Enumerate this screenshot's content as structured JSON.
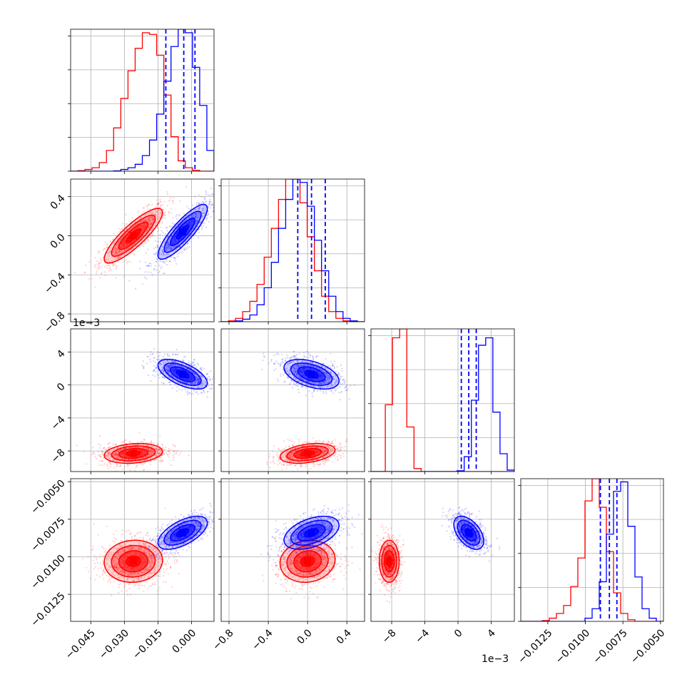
{
  "figure": {
    "type": "corner plot"
  },
  "chart_data": {
    "type": "corner",
    "parameters": 4,
    "colors": {
      "red": "#ff0000",
      "blue": "#0000ff"
    },
    "series": [
      {
        "color": "red",
        "means": [
          -0.026,
          0.0,
          -0.0083,
          -0.0103
        ],
        "sds": [
          0.0065,
          0.14,
          0.0006,
          0.0007
        ],
        "corr": [
          [
            1,
            0.85,
            0.2,
            0.05
          ],
          [
            0.85,
            1,
            0.35,
            0.1
          ],
          [
            0.2,
            0.35,
            1,
            0.0
          ],
          [
            0.05,
            0.1,
            0.0,
            1
          ]
        ]
      },
      {
        "color": "blue",
        "means": [
          -0.004,
          0.04,
          0.0013,
          -0.0084
        ],
        "sds": [
          0.0055,
          0.14,
          0.0009,
          0.00055
        ],
        "corr": [
          [
            1,
            0.85,
            -0.6,
            0.6
          ],
          [
            0.85,
            1,
            -0.45,
            0.45
          ],
          [
            -0.6,
            -0.45,
            1,
            -0.5
          ],
          [
            0.6,
            0.45,
            -0.5,
            1
          ]
        ]
      }
    ],
    "ranges": [
      [
        -0.054,
        0.01
      ],
      [
        -0.88,
        0.58
      ],
      [
        -0.0105,
        0.0068
      ],
      [
        -0.0143,
        -0.0048
      ]
    ],
    "quantile_lines_blue": [
      [
        -0.0115,
        -0.0035,
        0.0015
      ],
      [
        -0.1,
        0.04,
        0.18
      ],
      [
        0.0004,
        0.0013,
        0.0022
      ],
      [
        -0.009,
        -0.0084,
        -0.0079
      ]
    ],
    "histograms": [
      {
        "bins": 20,
        "red": [
          0,
          0.3,
          1,
          2,
          5,
          12,
          25,
          42,
          58,
          71,
          80,
          79,
          67,
          44,
          20,
          6,
          2,
          0.5,
          0,
          0
        ],
        "blue": [
          0,
          0,
          0,
          0,
          0,
          0,
          0.2,
          1,
          2,
          4,
          9,
          18,
          33,
          52,
          72,
          82,
          80,
          60,
          38,
          12
        ]
      },
      {
        "bins": 20,
        "red": [
          0,
          0.5,
          2,
          6,
          12,
          22,
          38,
          55,
          72,
          84,
          84,
          70,
          50,
          30,
          15,
          6,
          2,
          0.5,
          0,
          0
        ],
        "blue": [
          0,
          0,
          0.5,
          1.5,
          4,
          10,
          20,
          35,
          55,
          72,
          84,
          82,
          68,
          48,
          30,
          15,
          6,
          2,
          0.5,
          0
        ]
      },
      {
        "bins": 20,
        "red": [
          0,
          0,
          45,
          90,
          96,
          30,
          2,
          0,
          0,
          0,
          0,
          0,
          0,
          0,
          0,
          0,
          0,
          0,
          0,
          0
        ],
        "blue": [
          0,
          0,
          0,
          0,
          0,
          0,
          0,
          0,
          0,
          0,
          0,
          0,
          0.5,
          10,
          48,
          85,
          90,
          40,
          12,
          1
        ]
      },
      {
        "bins": 20,
        "red": [
          0,
          0,
          0,
          0.5,
          2,
          5,
          10,
          22,
          40,
          76,
          90,
          72,
          44,
          18,
          5,
          1,
          0,
          0,
          0,
          0
        ],
        "blue": [
          0,
          0,
          0,
          0,
          0,
          0,
          0,
          0,
          0,
          2,
          8,
          25,
          55,
          82,
          88,
          60,
          28,
          8,
          2,
          0
        ]
      }
    ],
    "ticks": [
      {
        "values": [
          -0.045,
          -0.03,
          -0.015,
          0.0
        ],
        "labels": [
          "−0.045",
          "−0.030",
          "−0.015",
          "0.000"
        ]
      },
      {
        "values": [
          -0.8,
          -0.4,
          0.0,
          0.4
        ],
        "labels": [
          "−0.8",
          "−0.4",
          "0.0",
          "0.4"
        ]
      },
      {
        "values": [
          -0.008,
          -0.004,
          0.0,
          0.004
        ],
        "labels": [
          "−8",
          "−4",
          "0",
          "4"
        ]
      },
      {
        "values": [
          -0.0125,
          -0.01,
          -0.0075,
          -0.005
        ],
        "labels": [
          "−0.0125",
          "−0.0100",
          "−0.0075",
          "−0.0050"
        ]
      }
    ],
    "offset_label": "1e−3",
    "contour_levels_sigma": [
      0.5,
      1.0,
      1.5,
      2.0
    ],
    "scatter_points_per_panel": 900
  }
}
